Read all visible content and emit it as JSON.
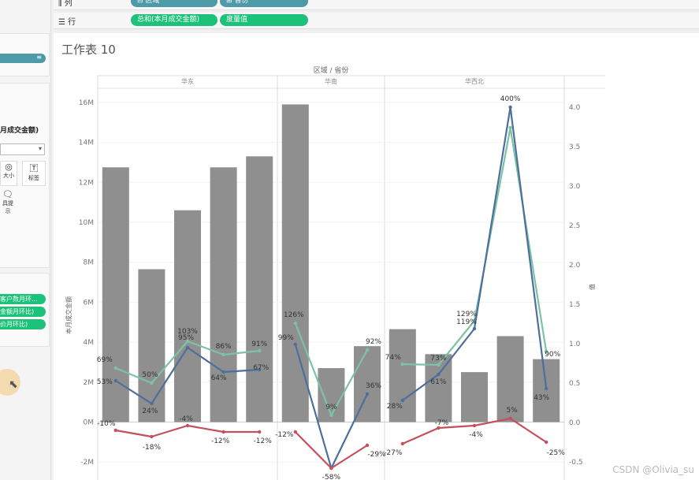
{
  "shelves": {
    "columns": {
      "icon": "columns-icon",
      "label": "列",
      "pills": [
        "区域",
        "省份"
      ]
    },
    "rows": {
      "icon": "rows-icon",
      "label": "行",
      "pills": [
        "总和(本月成交金额)",
        "度量值"
      ]
    }
  },
  "left_panel": {
    "marks_field": "月成交金额)",
    "mark_buttons": [
      {
        "icon": "size-icon",
        "label": "大小"
      },
      {
        "icon": "label-icon",
        "label": "标签"
      },
      {
        "icon": "tooltip-icon",
        "label": "具提示"
      }
    ],
    "measure_pills": [
      "客户数月环...",
      "金额月环比)",
      "价月环比)"
    ]
  },
  "sheet_title": "工作表 10",
  "watermark": "CSDN @Olivia_su",
  "colors": {
    "bar": "#8f8f8f",
    "line_green": "#7dc2a5",
    "line_blue": "#4c6f9c",
    "line_red": "#c4505b"
  },
  "chart_data": {
    "type": "bar",
    "header": "区域 / 省份",
    "regions": [
      {
        "name": "华东",
        "count": 5
      },
      {
        "name": "华南",
        "count": 3
      },
      {
        "name": "华西北",
        "count": 5
      }
    ],
    "ylabel": "本月成交金额",
    "y2label": "值",
    "ylim": [
      -2000000,
      17000000
    ],
    "y_ticks": [
      -2000000,
      0,
      2000000,
      4000000,
      6000000,
      8000000,
      10000000,
      12000000,
      14000000,
      16000000
    ],
    "y_tick_labels": [
      "-2M",
      "0M",
      "2M",
      "4M",
      "6M",
      "8M",
      "10M",
      "12M",
      "14M",
      "16M"
    ],
    "y2lim": [
      -0.5,
      4.15
    ],
    "y2_ticks": [
      -0.5,
      0,
      0.5,
      1,
      1.5,
      2,
      2.5,
      3,
      3.5,
      4
    ],
    "y2_tick_labels": [
      "-0.5",
      "0.0",
      "0.5",
      "1.0",
      "1.5",
      "2.0",
      "2.5",
      "3.0",
      "3.5",
      "4.0"
    ],
    "bars": [
      12750000,
      7650000,
      10600000,
      12750000,
      13300000,
      15900000,
      2700000,
      3800000,
      4650000,
      3400000,
      2500000,
      4300000,
      3150000
    ],
    "series": [
      {
        "values": [
          0.69,
          0.5,
          1.03,
          0.86,
          0.91,
          1.26,
          0.09,
          0.92,
          0.74,
          0.73,
          1.29,
          3.74,
          0.9
        ],
        "labels": [
          "69%",
          "50%",
          "103%",
          "86%",
          "91%",
          "126%",
          "9%",
          "92%",
          "74%",
          "73%",
          "129%",
          "",
          "90%"
        ]
      },
      {
        "values": [
          0.53,
          0.24,
          0.95,
          0.64,
          0.67,
          0.99,
          -0.58,
          0.36,
          0.28,
          0.61,
          1.19,
          4.0,
          0.43
        ],
        "labels": [
          "53%",
          "24%",
          "95%",
          "64%",
          "67%",
          "99%",
          "-58%",
          "36%",
          "28%",
          "61%",
          "119%",
          "400%",
          "43%"
        ]
      },
      {
        "values": [
          -0.1,
          -0.18,
          -0.04,
          -0.12,
          -0.12,
          -0.12,
          -0.58,
          -0.29,
          -0.27,
          -0.07,
          -0.04,
          0.05,
          -0.25
        ],
        "labels": [
          "-10%",
          "-18%",
          "-4%",
          "-12%",
          "-12%",
          "-12%",
          "",
          "-29%",
          "-27%",
          "-7%",
          "-4%",
          "5%",
          "-25%"
        ]
      }
    ]
  }
}
